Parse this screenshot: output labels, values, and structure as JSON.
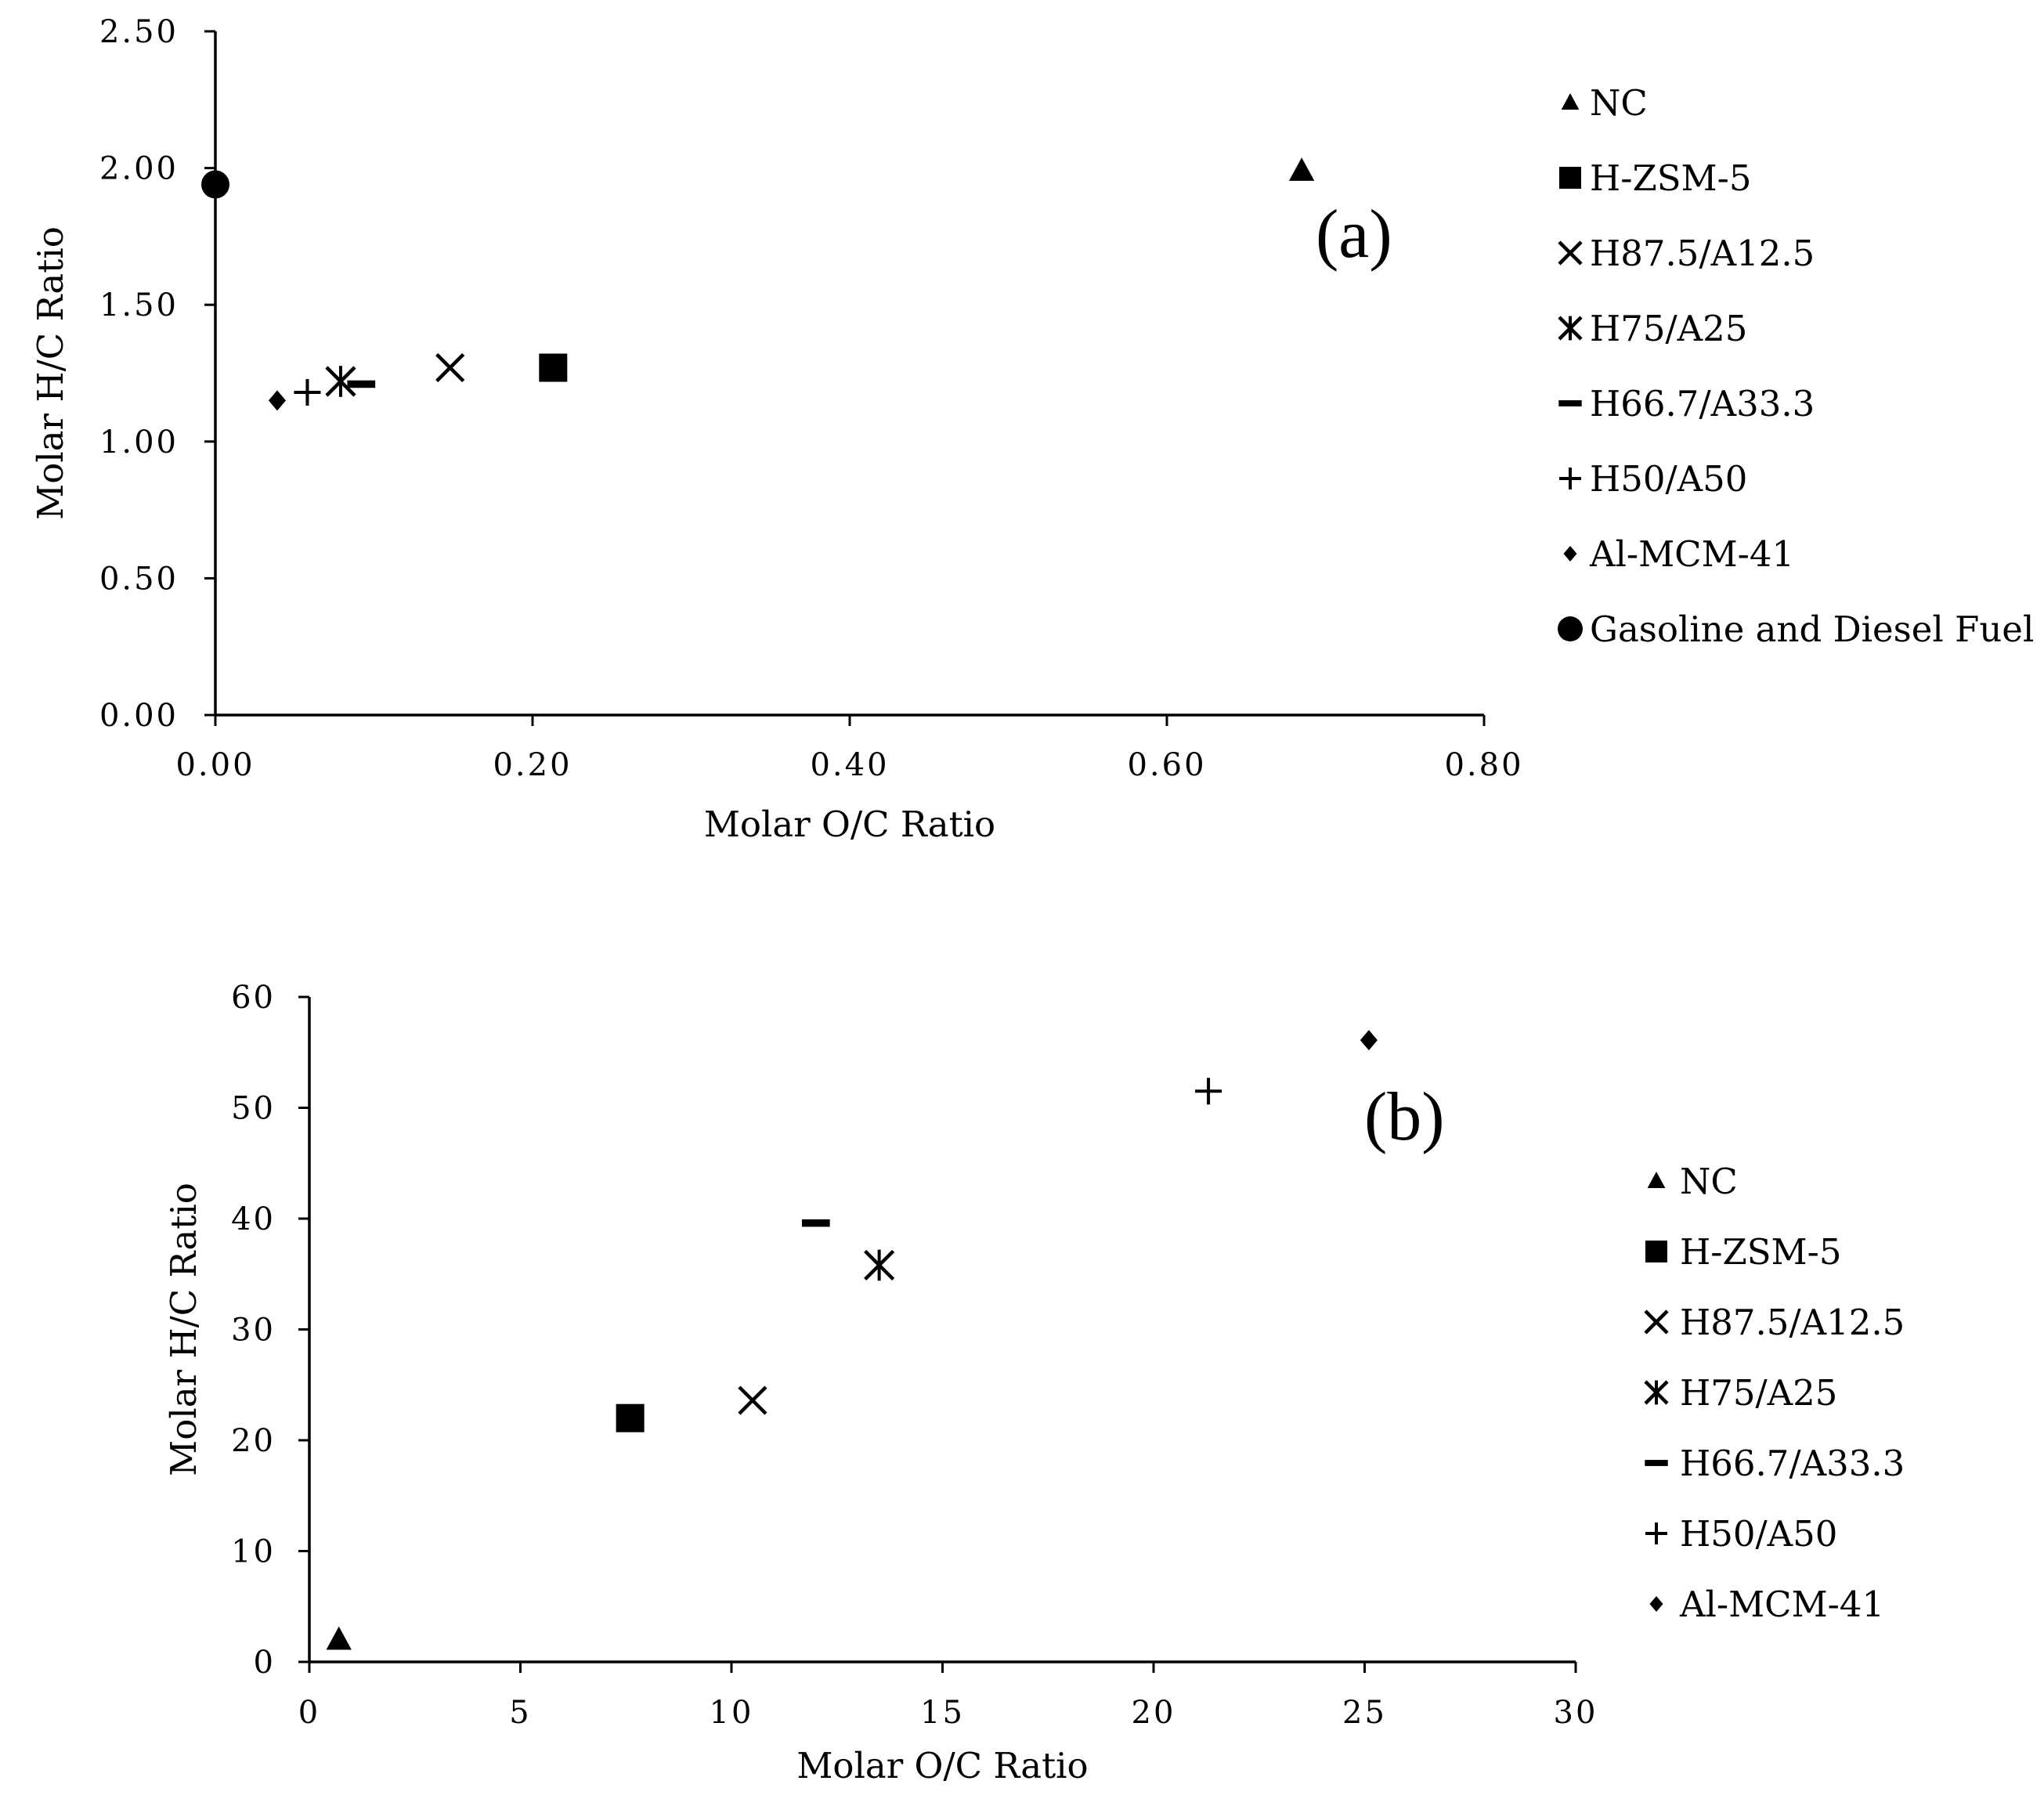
{
  "colors": {
    "ink": "#000000",
    "background": "#ffffff"
  },
  "chart_data": [
    {
      "type": "scatter",
      "panel_label": "(a)",
      "xlabel": "Molar O/C Ratio",
      "ylabel": "Molar H/C Ratio",
      "xlim": [
        0,
        0.8
      ],
      "ylim": [
        0,
        2.5
      ],
      "xticks": [
        "0.00",
        "0.20",
        "0.40",
        "0.60",
        "0.80"
      ],
      "yticks": [
        "0.00",
        "0.50",
        "1.00",
        "1.50",
        "2.00",
        "2.50"
      ],
      "grid": false,
      "legend_position": "right",
      "series": [
        {
          "name": "NC",
          "marker": "triangle",
          "x": 0.685,
          "y": 1.99
        },
        {
          "name": "H-ZSM-5",
          "marker": "square",
          "x": 0.213,
          "y": 1.27
        },
        {
          "name": "H87.5/A12.5",
          "marker": "x",
          "x": 0.148,
          "y": 1.27
        },
        {
          "name": "H75/A25",
          "marker": "asterisk",
          "x": 0.079,
          "y": 1.22
        },
        {
          "name": "H66.7/A33.3",
          "marker": "dash",
          "x": 0.092,
          "y": 1.21
        },
        {
          "name": "H50/A50",
          "marker": "plus",
          "x": 0.058,
          "y": 1.18
        },
        {
          "name": "Al-MCM-41",
          "marker": "diamond",
          "x": 0.039,
          "y": 1.15
        },
        {
          "name": "Gasoline and Diesel Fuel",
          "marker": "circle",
          "x": 0.0,
          "y": 1.94
        }
      ]
    },
    {
      "type": "scatter",
      "panel_label": "(b)",
      "xlabel": "Molar O/C Ratio",
      "ylabel": "Molar H/C Ratio",
      "xlim": [
        0,
        30
      ],
      "ylim": [
        0,
        60
      ],
      "xticks": [
        "0",
        "5",
        "10",
        "15",
        "20",
        "25",
        "30"
      ],
      "yticks": [
        "0",
        "10",
        "20",
        "30",
        "40",
        "50",
        "60"
      ],
      "grid": false,
      "legend_position": "right",
      "series": [
        {
          "name": "NC",
          "marker": "triangle",
          "x": 0.7,
          "y": 2.0
        },
        {
          "name": "H-ZSM-5",
          "marker": "square",
          "x": 7.6,
          "y": 22.0
        },
        {
          "name": "H87.5/A12.5",
          "marker": "x",
          "x": 10.5,
          "y": 23.6
        },
        {
          "name": "H75/A25",
          "marker": "asterisk",
          "x": 13.5,
          "y": 35.8
        },
        {
          "name": "H66.7/A33.3",
          "marker": "dash",
          "x": 12.0,
          "y": 39.6
        },
        {
          "name": "H50/A50",
          "marker": "plus",
          "x": 21.3,
          "y": 51.5
        },
        {
          "name": "Al-MCM-41",
          "marker": "diamond",
          "x": 25.1,
          "y": 56.1
        }
      ]
    }
  ]
}
